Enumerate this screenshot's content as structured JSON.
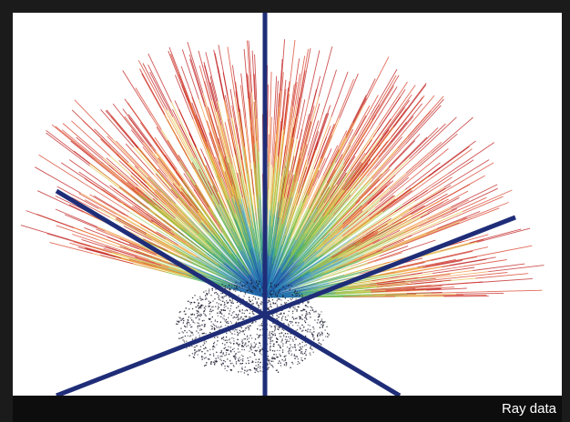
{
  "caption": "Ray data",
  "colors": {
    "frame": "#1b1b1b",
    "axes": "#1f2d78",
    "cluster": "#1a1a2e",
    "ray_palette": [
      "#1f4fa0",
      "#2a8fb8",
      "#3aa86a",
      "#8ac23a",
      "#e0c040",
      "#f08a2a",
      "#d8402a",
      "#c02020"
    ]
  }
}
